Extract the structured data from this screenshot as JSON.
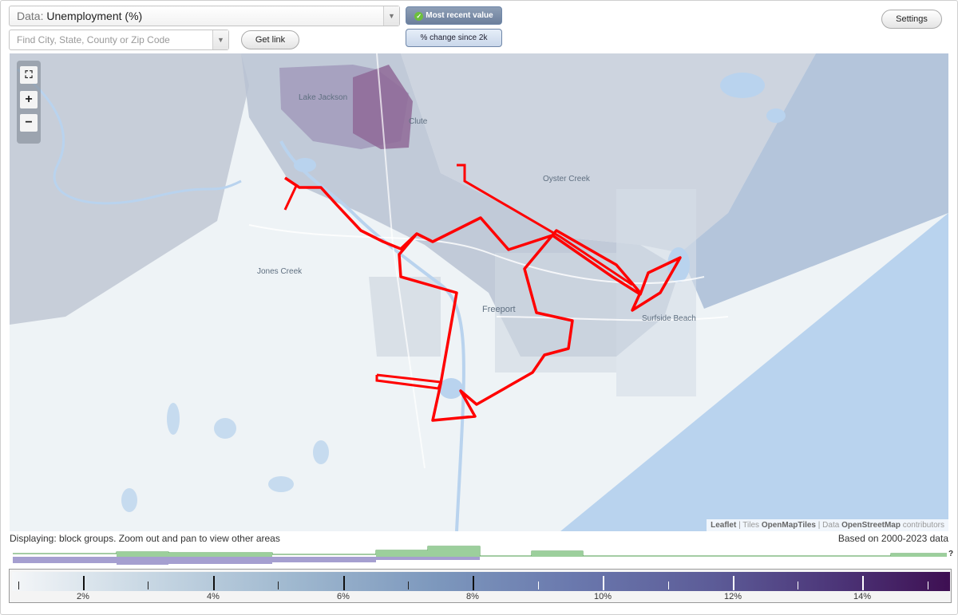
{
  "controls": {
    "data_prefix": "Data:",
    "data_value": "Unemployment (%)",
    "search_placeholder": "Find City, State, County or Zip Code",
    "get_link": "Get link",
    "most_recent": "Most recent value",
    "pct_change": "% change since 2k",
    "settings": "Settings"
  },
  "map": {
    "labels": {
      "lake_jackson": "Lake Jackson",
      "clute": "Clute",
      "oyster_creek": "Oyster Creek",
      "jones_creek": "Jones Creek",
      "freeport": "Freeport",
      "surfside_beach": "Surfside Beach"
    },
    "highlight_color": "#ff0000",
    "zoom_in": "+",
    "zoom_out": "−",
    "fullscreen_icon": "fullscreen-icon"
  },
  "attribution": {
    "leaflet": "Leaflet",
    "tiles_prefix": "| Tiles",
    "tiles": "OpenMapTiles",
    "data_prefix": "| Data",
    "osm": "OpenStreetMap",
    "suffix": "contributors"
  },
  "status": {
    "displaying": "Displaying: block groups. Zoom out and pan to view other areas",
    "based_on": "Based on 2000-2023 data"
  },
  "histogram": {
    "question_mark": "?"
  },
  "legend": {
    "labels": [
      {
        "id": "l2",
        "text": "2%"
      },
      {
        "id": "l4",
        "text": "4%"
      },
      {
        "id": "l6",
        "text": "6%"
      },
      {
        "id": "l8",
        "text": "8%"
      },
      {
        "id": "l10",
        "text": "10%"
      },
      {
        "id": "l12",
        "text": "12%"
      },
      {
        "id": "l14",
        "text": "14%"
      }
    ]
  }
}
